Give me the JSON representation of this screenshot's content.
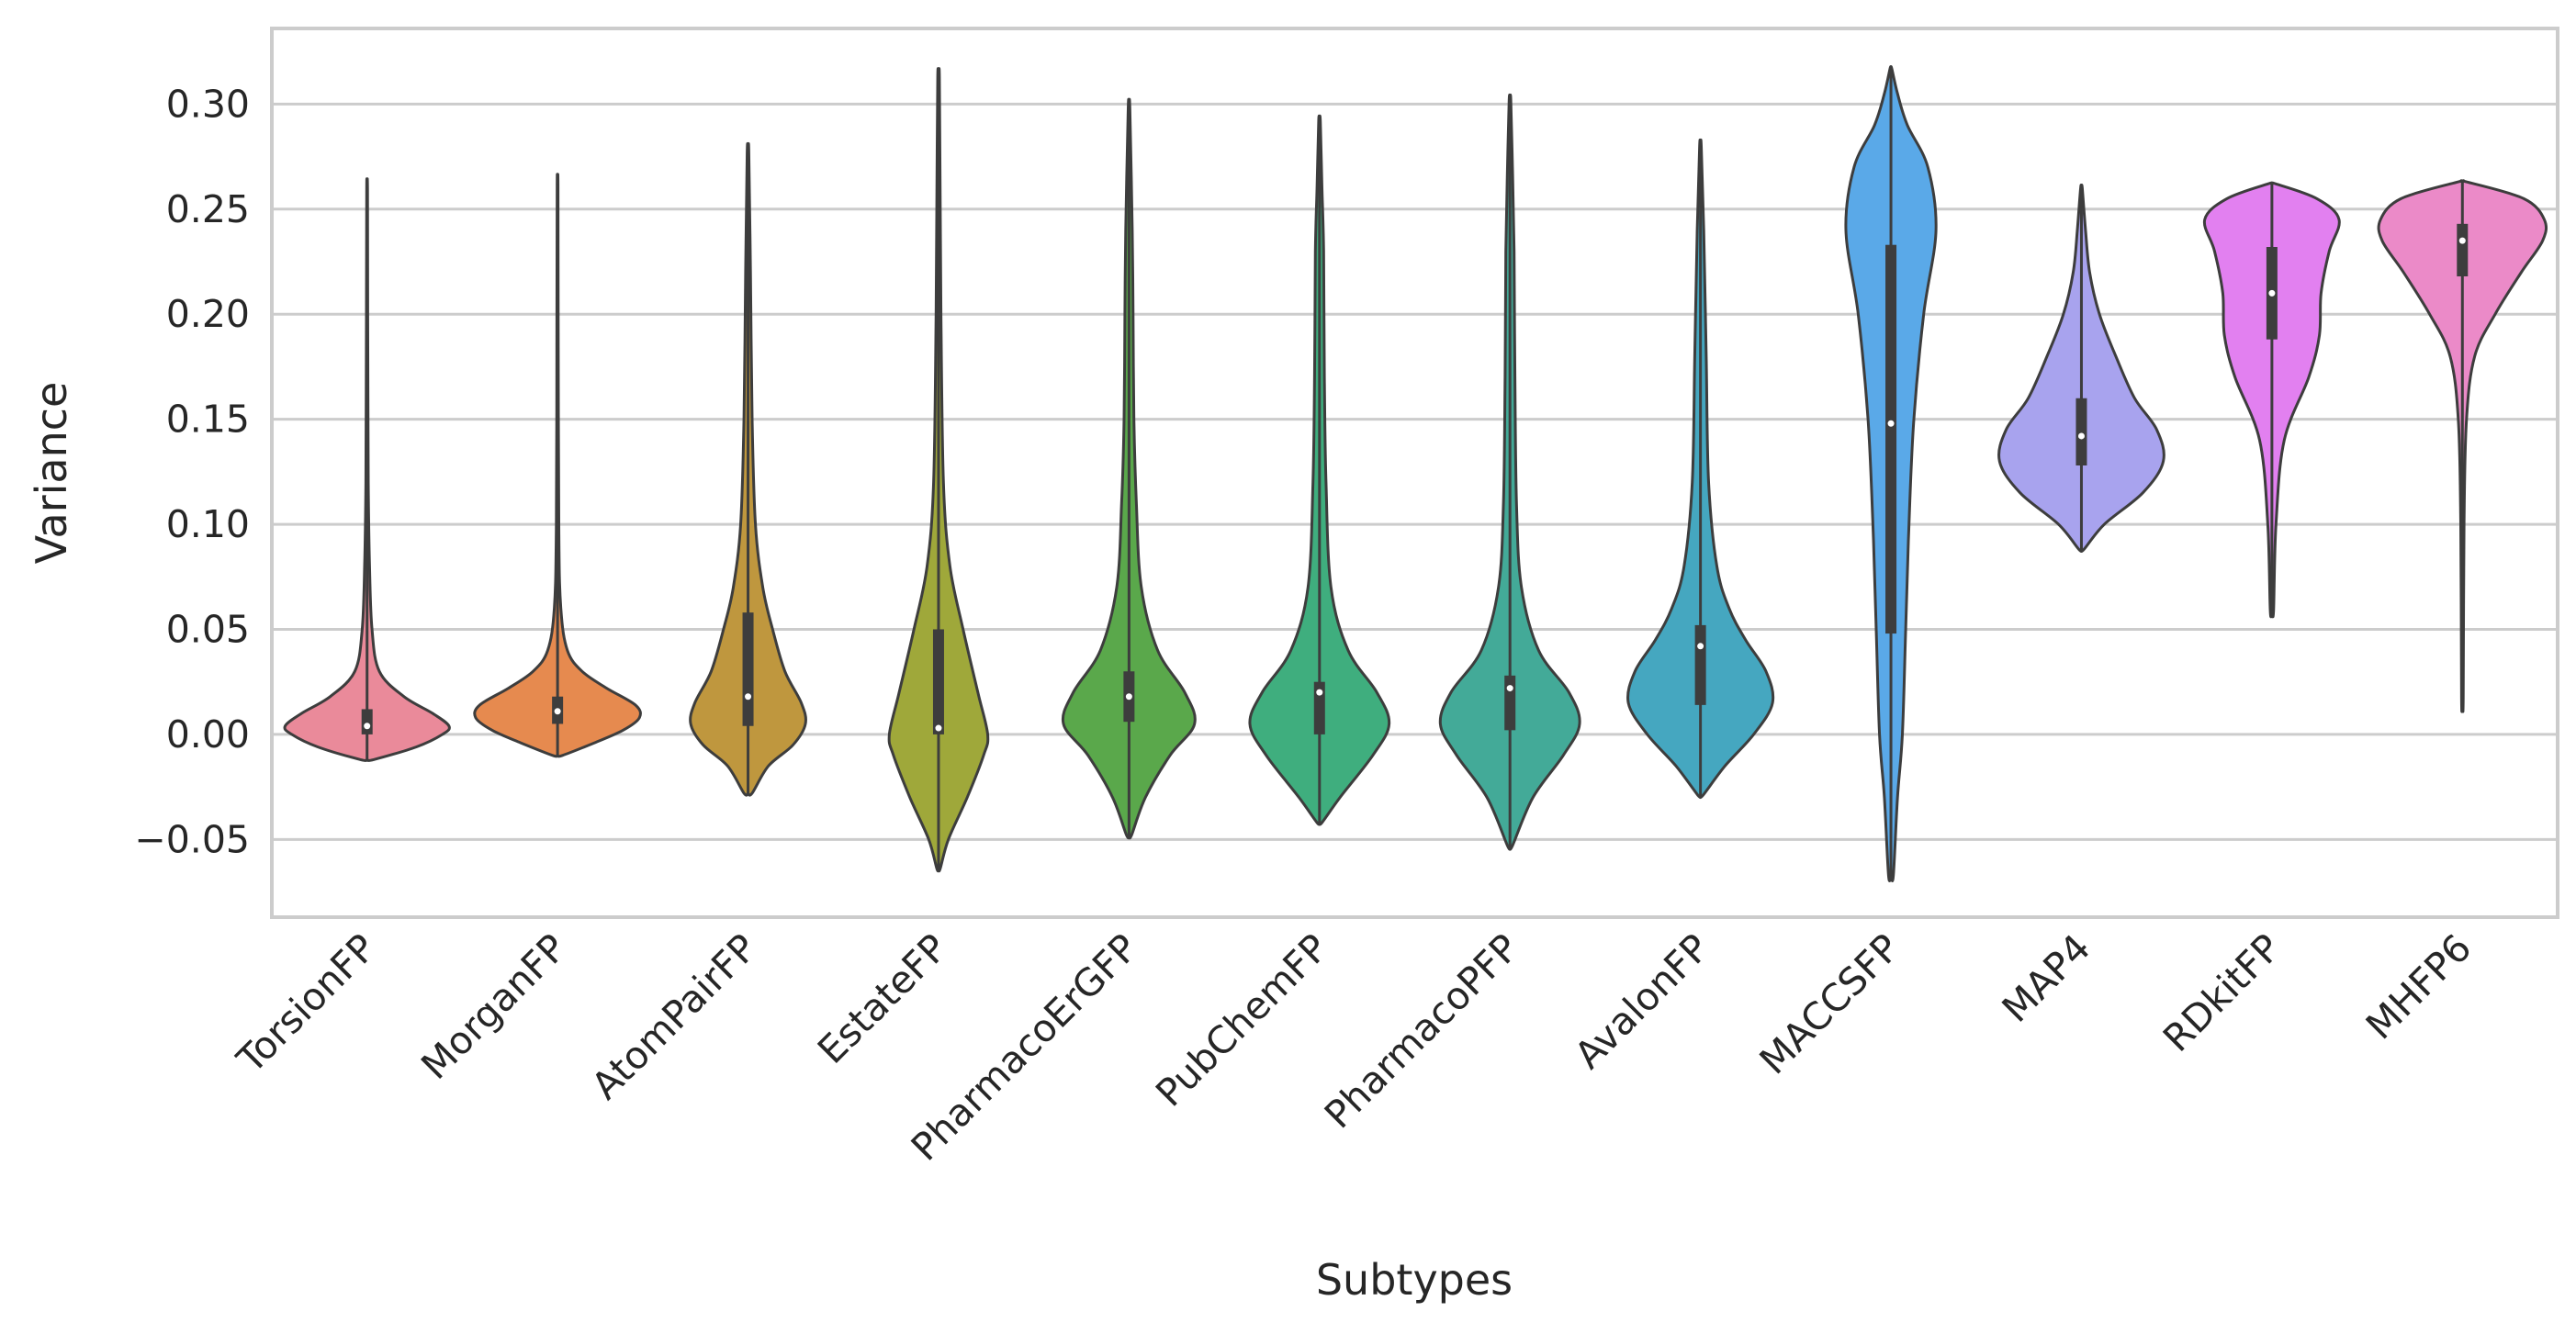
{
  "chart_data": {
    "type": "violin",
    "xlabel": "Subtypes",
    "ylabel": "Variance",
    "ylim": [
      -0.087,
      0.336
    ],
    "yticks": [
      -0.05,
      0.0,
      0.05,
      0.1,
      0.15,
      0.2,
      0.25,
      0.3
    ],
    "ytick_labels": [
      "−0.05",
      "0.00",
      "0.05",
      "0.10",
      "0.15",
      "0.20",
      "0.25",
      "0.30"
    ],
    "grid": "horizontal",
    "categories": [
      "TorsionFP",
      "MorganFP",
      "AtomPairFP",
      "EstateFP",
      "PharmacoErGFP",
      "PubChemFP",
      "PharmacoPFP",
      "AvalonFP",
      "MACCSFP",
      "MAP4",
      "RDkitFP",
      "MHFP6"
    ],
    "violins": [
      {
        "name": "TorsionFP",
        "color": "#ea8a9a",
        "min": -0.012,
        "max": 0.26,
        "q1": 0.0,
        "median": 0.004,
        "q3": 0.012,
        "profile": [
          [
            -0.012,
            0.08
          ],
          [
            -0.006,
            0.6
          ],
          [
            0.0,
            0.92
          ],
          [
            0.004,
            1.0
          ],
          [
            0.01,
            0.8
          ],
          [
            0.018,
            0.45
          ],
          [
            0.03,
            0.15
          ],
          [
            0.05,
            0.06
          ],
          [
            0.08,
            0.03
          ],
          [
            0.12,
            0.015
          ],
          [
            0.2,
            0.008
          ],
          [
            0.26,
            0.005
          ]
        ]
      },
      {
        "name": "MorganFP",
        "color": "#e68a4f",
        "min": -0.01,
        "max": 0.262,
        "q1": 0.005,
        "median": 0.011,
        "q3": 0.018,
        "profile": [
          [
            -0.01,
            0.06
          ],
          [
            -0.004,
            0.45
          ],
          [
            0.002,
            0.8
          ],
          [
            0.008,
            1.0
          ],
          [
            0.014,
            0.95
          ],
          [
            0.022,
            0.6
          ],
          [
            0.03,
            0.3
          ],
          [
            0.04,
            0.12
          ],
          [
            0.06,
            0.04
          ],
          [
            0.1,
            0.015
          ],
          [
            0.2,
            0.008
          ],
          [
            0.262,
            0.005
          ]
        ]
      },
      {
        "name": "AtomPairFP",
        "color": "#bf973e",
        "min": -0.028,
        "max": 0.277,
        "q1": 0.004,
        "median": 0.018,
        "q3": 0.058,
        "profile": [
          [
            -0.028,
            0.05
          ],
          [
            -0.015,
            0.25
          ],
          [
            -0.005,
            0.55
          ],
          [
            0.005,
            0.7
          ],
          [
            0.015,
            0.65
          ],
          [
            0.03,
            0.45
          ],
          [
            0.05,
            0.3
          ],
          [
            0.07,
            0.18
          ],
          [
            0.1,
            0.09
          ],
          [
            0.15,
            0.05
          ],
          [
            0.22,
            0.03
          ],
          [
            0.277,
            0.01
          ]
        ]
      },
      {
        "name": "EstateFP",
        "color": "#9fa83a",
        "min": -0.064,
        "max": 0.313,
        "q1": 0.0,
        "median": 0.003,
        "q3": 0.05,
        "profile": [
          [
            -0.064,
            0.02
          ],
          [
            -0.05,
            0.12
          ],
          [
            -0.03,
            0.35
          ],
          [
            -0.01,
            0.55
          ],
          [
            0.0,
            0.6
          ],
          [
            0.02,
            0.48
          ],
          [
            0.05,
            0.3
          ],
          [
            0.08,
            0.14
          ],
          [
            0.12,
            0.06
          ],
          [
            0.2,
            0.03
          ],
          [
            0.26,
            0.02
          ],
          [
            0.313,
            0.01
          ]
        ]
      },
      {
        "name": "PharmacoErGFP",
        "color": "#5aa84b",
        "min": -0.048,
        "max": 0.298,
        "q1": 0.006,
        "median": 0.018,
        "q3": 0.03,
        "profile": [
          [
            -0.048,
            0.03
          ],
          [
            -0.03,
            0.2
          ],
          [
            -0.01,
            0.5
          ],
          [
            0.005,
            0.8
          ],
          [
            0.02,
            0.68
          ],
          [
            0.04,
            0.35
          ],
          [
            0.07,
            0.15
          ],
          [
            0.11,
            0.09
          ],
          [
            0.15,
            0.06
          ],
          [
            0.2,
            0.05
          ],
          [
            0.24,
            0.04
          ],
          [
            0.298,
            0.01
          ]
        ]
      },
      {
        "name": "PubChemFP",
        "color": "#3fae7e",
        "min": -0.042,
        "max": 0.292,
        "q1": 0.0,
        "median": 0.02,
        "q3": 0.025,
        "profile": [
          [
            -0.042,
            0.03
          ],
          [
            -0.03,
            0.25
          ],
          [
            -0.01,
            0.65
          ],
          [
            0.005,
            0.85
          ],
          [
            0.02,
            0.7
          ],
          [
            0.04,
            0.35
          ],
          [
            0.07,
            0.14
          ],
          [
            0.12,
            0.08
          ],
          [
            0.17,
            0.06
          ],
          [
            0.23,
            0.05
          ],
          [
            0.26,
            0.03
          ],
          [
            0.292,
            0.01
          ]
        ]
      },
      {
        "name": "PharmacoPFP",
        "color": "#43aa98",
        "min": -0.053,
        "max": 0.302,
        "q1": 0.002,
        "median": 0.022,
        "q3": 0.028,
        "profile": [
          [
            -0.053,
            0.03
          ],
          [
            -0.03,
            0.28
          ],
          [
            -0.01,
            0.65
          ],
          [
            0.005,
            0.85
          ],
          [
            0.02,
            0.72
          ],
          [
            0.04,
            0.35
          ],
          [
            0.07,
            0.14
          ],
          [
            0.11,
            0.08
          ],
          [
            0.17,
            0.06
          ],
          [
            0.23,
            0.05
          ],
          [
            0.27,
            0.03
          ],
          [
            0.302,
            0.01
          ]
        ]
      },
      {
        "name": "AvalonFP",
        "color": "#45a7c0",
        "min": -0.029,
        "max": 0.28,
        "q1": 0.014,
        "median": 0.042,
        "q3": 0.052,
        "profile": [
          [
            -0.029,
            0.03
          ],
          [
            -0.015,
            0.3
          ],
          [
            0.0,
            0.65
          ],
          [
            0.015,
            0.88
          ],
          [
            0.03,
            0.8
          ],
          [
            0.045,
            0.55
          ],
          [
            0.06,
            0.35
          ],
          [
            0.08,
            0.2
          ],
          [
            0.12,
            0.1
          ],
          [
            0.18,
            0.07
          ],
          [
            0.24,
            0.04
          ],
          [
            0.28,
            0.01
          ]
        ]
      },
      {
        "name": "MACCSFP",
        "color": "#5aa9e8",
        "min": -0.067,
        "max": 0.317,
        "q1": 0.048,
        "median": 0.148,
        "q3": 0.233,
        "profile": [
          [
            -0.067,
            0.03
          ],
          [
            -0.03,
            0.08
          ],
          [
            0.0,
            0.14
          ],
          [
            0.05,
            0.18
          ],
          [
            0.1,
            0.22
          ],
          [
            0.15,
            0.28
          ],
          [
            0.2,
            0.4
          ],
          [
            0.24,
            0.55
          ],
          [
            0.27,
            0.45
          ],
          [
            0.29,
            0.2
          ],
          [
            0.305,
            0.08
          ],
          [
            0.317,
            0.01
          ]
        ]
      },
      {
        "name": "MAP4",
        "color": "#a8a3ee",
        "min": 0.088,
        "max": 0.26,
        "q1": 0.128,
        "median": 0.142,
        "q3": 0.16,
        "profile": [
          [
            0.088,
            0.03
          ],
          [
            0.1,
            0.28
          ],
          [
            0.115,
            0.75
          ],
          [
            0.13,
            1.0
          ],
          [
            0.145,
            0.92
          ],
          [
            0.16,
            0.65
          ],
          [
            0.18,
            0.42
          ],
          [
            0.2,
            0.22
          ],
          [
            0.22,
            0.1
          ],
          [
            0.24,
            0.05
          ],
          [
            0.26,
            0.01
          ]
        ]
      },
      {
        "name": "RDkitFP",
        "color": "#e280f0",
        "min": 0.059,
        "max": 0.262,
        "q1": 0.188,
        "median": 0.21,
        "q3": 0.232,
        "profile": [
          [
            0.059,
            0.02
          ],
          [
            0.1,
            0.05
          ],
          [
            0.14,
            0.15
          ],
          [
            0.17,
            0.45
          ],
          [
            0.19,
            0.58
          ],
          [
            0.21,
            0.6
          ],
          [
            0.23,
            0.7
          ],
          [
            0.245,
            0.82
          ],
          [
            0.255,
            0.55
          ],
          [
            0.262,
            0.05
          ]
        ]
      },
      {
        "name": "MHFP6",
        "color": "#eb8ac8",
        "min": 0.017,
        "max": 0.263,
        "q1": 0.218,
        "median": 0.235,
        "q3": 0.243,
        "profile": [
          [
            0.017,
            0.01
          ],
          [
            0.1,
            0.02
          ],
          [
            0.15,
            0.05
          ],
          [
            0.18,
            0.15
          ],
          [
            0.2,
            0.4
          ],
          [
            0.22,
            0.72
          ],
          [
            0.235,
            0.98
          ],
          [
            0.245,
            1.0
          ],
          [
            0.255,
            0.75
          ],
          [
            0.263,
            0.05
          ]
        ]
      }
    ]
  }
}
